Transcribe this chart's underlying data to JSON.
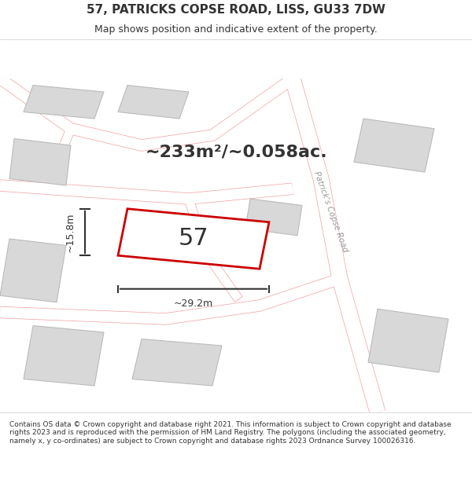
{
  "title": "57, PATRICKS COPSE ROAD, LISS, GU33 7DW",
  "subtitle": "Map shows position and indicative extent of the property.",
  "area_text": "~233m²/~0.058ac.",
  "width_label": "~29.2m",
  "height_label": "~15.8m",
  "plot_number": "57",
  "road_label": "Patrick's Copse Road",
  "footer": "Contains OS data © Crown copyright and database right 2021. This information is subject to Crown copyright and database rights 2023 and is reproduced with the permission of HM Land Registry. The polygons (including the associated geometry, namely x, y co-ordinates) are subject to Crown copyright and database rights 2023 Ordnance Survey 100026316.",
  "bg_color": "#f5f5f5",
  "map_bg": "#f0eeee",
  "road_color": "#ffffff",
  "building_color": "#d8d8d8",
  "building_edge": "#bbbbbb",
  "plot_fill": "#ffffff",
  "plot_edge": "#cc0000",
  "road_line_color": "#f0a0a0",
  "dim_color": "#333333",
  "title_color": "#333333",
  "footer_color": "#333333"
}
